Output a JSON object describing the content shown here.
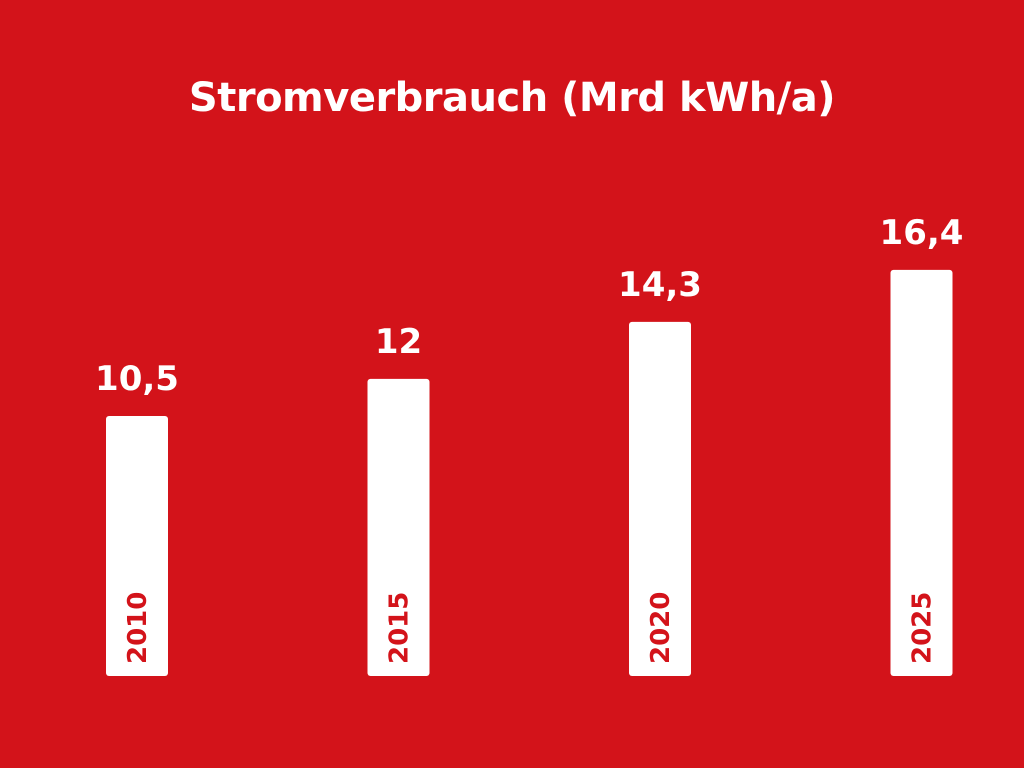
{
  "chart_data": {
    "type": "bar",
    "title": "Stromverbrauch (Mrd kWh/a)",
    "categories": [
      "2010",
      "2015",
      "2020",
      "2025"
    ],
    "values": [
      10.5,
      12,
      14.3,
      16.4
    ],
    "value_labels": [
      "10,5",
      "12",
      "14,3",
      "16,4"
    ],
    "xlabel": "",
    "ylabel": "",
    "ylim": [
      0,
      27.3
    ],
    "grid": false,
    "legend": "none",
    "colors": {
      "background": "#d3131a",
      "bar": "#ffffff",
      "value_text": "#ffffff",
      "category_text": "#d3131a"
    }
  }
}
